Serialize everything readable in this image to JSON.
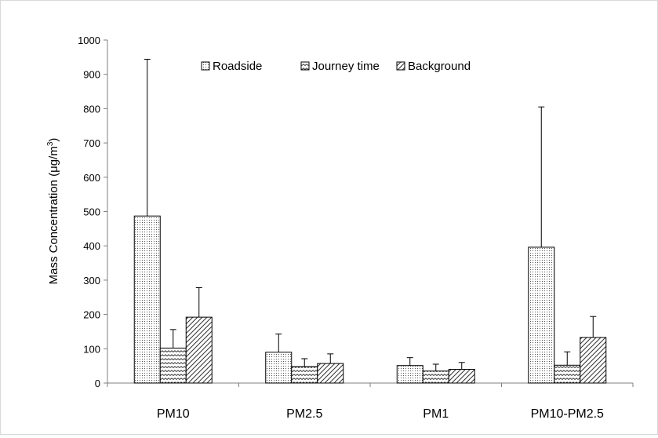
{
  "chart_data": {
    "type": "bar",
    "title": "",
    "xlabel": "",
    "ylabel": "Mass Concentration (μg/m",
    "ylabel_superscript": "3",
    "ylabel_suffix": ")",
    "ylim": [
      0,
      1000
    ],
    "yticks": [
      0,
      100,
      200,
      300,
      400,
      500,
      600,
      700,
      800,
      900,
      1000
    ],
    "categories": [
      "PM10",
      "PM2.5",
      "PM1",
      "PM10-PM2.5"
    ],
    "legend_position": "top-center",
    "grid": false,
    "error_bars": "upper",
    "series": [
      {
        "name": "Roadside",
        "pattern": "dots",
        "values": [
          487,
          90,
          51,
          396
        ],
        "error_upper": [
          944,
          143,
          74,
          805
        ]
      },
      {
        "name": "Journey time",
        "pattern": "waves",
        "values": [
          102,
          48,
          35,
          52
        ],
        "error_upper": [
          156,
          71,
          55,
          91
        ]
      },
      {
        "name": "Background",
        "pattern": "diagonal-hatch",
        "values": [
          192,
          57,
          40,
          133
        ],
        "error_upper": [
          278,
          85,
          60,
          194
        ]
      }
    ]
  }
}
